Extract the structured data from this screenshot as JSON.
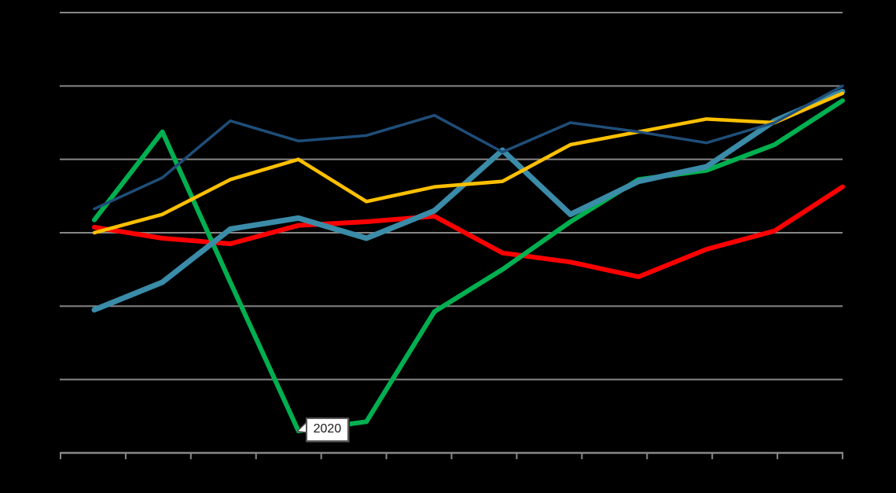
{
  "canvas": {
    "background_color": "#000000",
    "note": "Chart text (title, axis labels, legend) is rendered black-on-black and is not visible; only gridlines, axis ticks, series lines and one callout are visible."
  },
  "chart_data": {
    "type": "line",
    "title": "",
    "xlabel": "",
    "ylabel": "",
    "x": [
      1,
      2,
      3,
      4,
      5,
      6,
      7,
      8,
      9,
      10,
      11,
      12
    ],
    "x_tick_labels_visible": false,
    "y_tick_labels_visible": false,
    "ylim": [
      0,
      120
    ],
    "gridline_step": 20,
    "grid": "horizontal-on",
    "legend_position": "none-visible",
    "series": [
      {
        "name": "red",
        "color": "#ff0000",
        "stroke_width": 6,
        "values": [
          61.5,
          58.5,
          57,
          62,
          63,
          64.5,
          54.5,
          52,
          48,
          55.5,
          60.5,
          72.5
        ]
      },
      {
        "name": "green",
        "color": "#00b050",
        "stroke_width": 6,
        "values": [
          63.5,
          87.5,
          46.5,
          6,
          8.5,
          38.5,
          50,
          63,
          74.5,
          77,
          84,
          96
        ]
      },
      {
        "name": "teal",
        "color": "#3a8ca8",
        "stroke_width": 7,
        "values": [
          39,
          46.5,
          61,
          64,
          58.5,
          66,
          82.5,
          65,
          74,
          78,
          90.5,
          98.5
        ]
      },
      {
        "name": "gold",
        "color": "#ffc000",
        "stroke_width": 4.5,
        "values": [
          60,
          65,
          74.5,
          80,
          68.5,
          72.5,
          74,
          84,
          87.5,
          91,
          90,
          98
        ]
      },
      {
        "name": "navy",
        "color": "#1f4e79",
        "stroke_width": 3.5,
        "values": [
          66.5,
          75,
          90.5,
          85,
          86.5,
          92,
          82,
          90,
          87.5,
          84.5,
          90,
          100
        ]
      }
    ],
    "annotations": [
      {
        "text": "2020",
        "attached_series": "green",
        "attached_point": 4
      }
    ],
    "axis_style": {
      "gridline_color": "#878787",
      "axis_color": "#878787",
      "x_tick_count": 13
    }
  }
}
